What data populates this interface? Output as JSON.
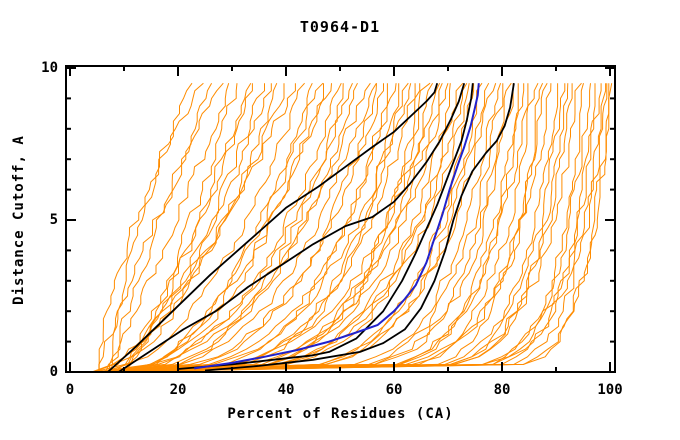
{
  "window": {
    "background": "#ffffff"
  },
  "chart_data": {
    "type": "line",
    "title": "T0964-D1",
    "xlabel": "Percent of Residues (CA)",
    "ylabel": "Distance Cutoff, A",
    "xlim": [
      -0.8,
      100.9
    ],
    "ylim": [
      0,
      10.1
    ],
    "x_ticks_major": [
      0,
      20,
      40,
      60,
      80,
      100
    ],
    "x_ticks_minor": [
      10,
      30,
      50,
      70,
      90
    ],
    "y_ticks_major": [
      0,
      5,
      10
    ],
    "y_ticks_minor": [
      1,
      2,
      3,
      4,
      6,
      7,
      8,
      9
    ],
    "grid": "off",
    "legend": "none",
    "y_top_cutoff": 9.5,
    "colors": {
      "ensemble": "#ff8c00",
      "highlight": "#000000",
      "best": "#2222cc",
      "frame": "#000000",
      "background": "#ffffff"
    },
    "black_series": [
      {
        "name": "highlight-model-1",
        "points": [
          [
            7,
            0
          ],
          [
            12,
            0.8
          ],
          [
            19,
            2.0
          ],
          [
            26,
            3.2
          ],
          [
            33,
            4.3
          ],
          [
            40,
            5.4
          ],
          [
            46,
            6.1
          ],
          [
            51,
            6.75
          ],
          [
            56,
            7.4
          ],
          [
            60,
            7.9
          ],
          [
            63,
            8.4
          ],
          [
            66,
            8.9
          ],
          [
            67.5,
            9.2
          ],
          [
            68,
            9.5
          ]
        ]
      },
      {
        "name": "highlight-model-2",
        "points": [
          [
            9,
            0
          ],
          [
            15,
            0.7
          ],
          [
            21,
            1.4
          ],
          [
            27,
            2.0
          ],
          [
            33,
            2.8
          ],
          [
            39,
            3.5
          ],
          [
            45,
            4.2
          ],
          [
            51,
            4.8
          ],
          [
            56,
            5.1
          ],
          [
            60,
            5.6
          ],
          [
            63,
            6.2
          ],
          [
            66,
            6.9
          ],
          [
            68.5,
            7.6
          ],
          [
            70.5,
            8.3
          ],
          [
            72,
            8.9
          ],
          [
            73,
            9.5
          ]
        ]
      },
      {
        "name": "highlight-model-3",
        "points": [
          [
            20,
            0.1
          ],
          [
            30,
            0.25
          ],
          [
            40,
            0.45
          ],
          [
            45,
            0.55
          ],
          [
            48,
            0.66
          ],
          [
            53,
            1.1
          ],
          [
            58,
            2.0
          ],
          [
            61.5,
            3.0
          ],
          [
            64,
            3.9
          ],
          [
            66,
            4.7
          ],
          [
            68,
            5.5
          ],
          [
            69.5,
            6.2
          ],
          [
            71,
            6.9
          ],
          [
            72.5,
            7.6
          ],
          [
            73.5,
            8.3
          ],
          [
            74.3,
            9.0
          ],
          [
            74.6,
            9.5
          ]
        ]
      },
      {
        "name": "highlight-model-4",
        "points": [
          [
            25,
            0.05
          ],
          [
            35,
            0.2
          ],
          [
            45,
            0.4
          ],
          [
            53.7,
            0.66
          ],
          [
            58,
            0.95
          ],
          [
            62,
            1.4
          ],
          [
            65,
            2.1
          ],
          [
            67.5,
            3.0
          ],
          [
            69.5,
            4.0
          ],
          [
            71,
            5.0
          ],
          [
            72.5,
            5.8
          ],
          [
            74.5,
            6.6
          ],
          [
            77,
            7.2
          ],
          [
            79,
            7.6
          ],
          [
            80.5,
            8.1
          ],
          [
            81.5,
            8.7
          ],
          [
            82.2,
            9.5
          ]
        ]
      }
    ],
    "blue_series": [
      {
        "name": "best-model",
        "points": [
          [
            23,
            0.12
          ],
          [
            30,
            0.3
          ],
          [
            36,
            0.5
          ],
          [
            42,
            0.72
          ],
          [
            48,
            1.0
          ],
          [
            53,
            1.3
          ],
          [
            57,
            1.55
          ],
          [
            60,
            2.0
          ],
          [
            62,
            2.4
          ],
          [
            64,
            2.85
          ],
          [
            66,
            3.6
          ],
          [
            67.5,
            4.4
          ],
          [
            69,
            5.2
          ],
          [
            70.3,
            6.0
          ],
          [
            71.8,
            6.8
          ],
          [
            73,
            7.4
          ],
          [
            74.2,
            8.1
          ],
          [
            75,
            8.7
          ],
          [
            75.5,
            9.1
          ],
          [
            75.7,
            9.5
          ]
        ]
      }
    ],
    "orange_ensemble": {
      "name": "server-models",
      "count": 70,
      "seed": 11,
      "x_start_range": [
        4,
        10
      ],
      "y_top": 9.5,
      "x_tops": [
        22,
        24,
        26,
        28,
        30,
        31,
        33,
        34,
        36,
        37,
        39,
        40,
        42,
        43,
        45,
        46,
        47,
        48,
        50,
        51,
        52,
        53,
        55,
        56,
        57,
        58,
        59,
        60,
        61,
        62,
        63,
        64,
        65,
        66,
        67,
        68,
        69,
        70,
        71,
        72,
        73,
        74,
        75,
        76,
        77,
        78,
        79,
        80,
        81,
        82,
        83,
        84,
        85,
        86,
        87,
        88,
        89,
        90,
        91,
        92,
        93,
        94,
        95,
        96,
        97,
        98,
        99,
        100,
        100,
        99
      ]
    }
  }
}
